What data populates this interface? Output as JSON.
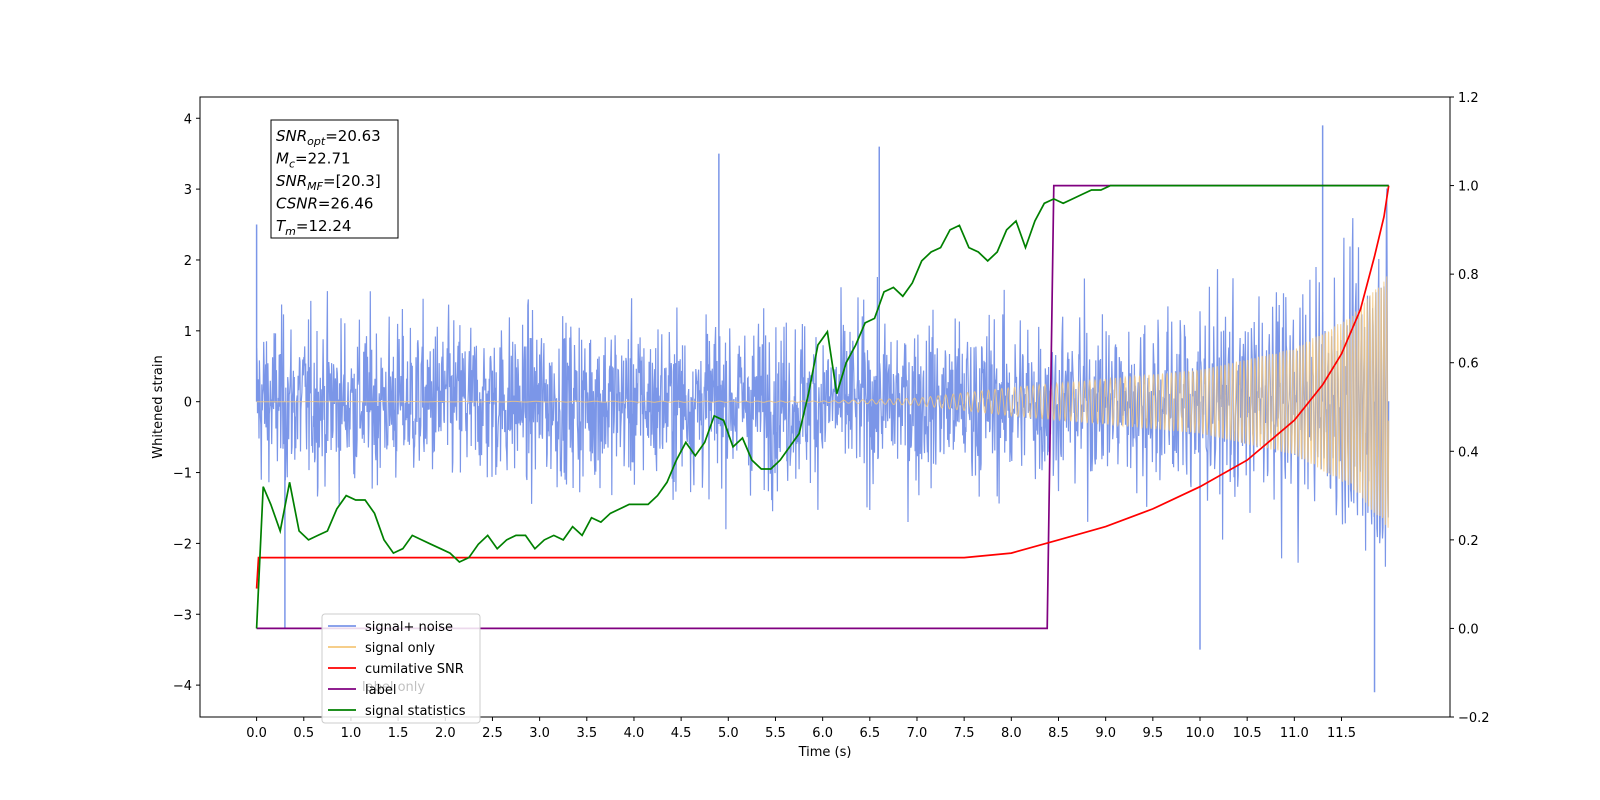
{
  "chart_data": {
    "type": "line",
    "xlabel": "Time (s)",
    "ylabel": "Whitened strain",
    "xlim": [
      -0.6,
      12.65
    ],
    "ylim": [
      -4.45,
      4.3
    ],
    "y2lim": [
      -0.2,
      1.2
    ],
    "x_ticks": [
      "0.0",
      "0.5",
      "1.0",
      "1.5",
      "2.0",
      "2.5",
      "3.0",
      "3.5",
      "4.0",
      "4.5",
      "5.0",
      "5.5",
      "6.0",
      "6.5",
      "7.0",
      "7.5",
      "8.0",
      "8.5",
      "9.0",
      "9.5",
      "10.0",
      "10.5",
      "11.0",
      "11.5"
    ],
    "y_ticks": [
      "4",
      "3",
      "2",
      "1",
      "0",
      "−1",
      "−2",
      "−3",
      "−4"
    ],
    "y2_ticks": [
      "1.2",
      "1.0",
      "0.8",
      "0.6",
      "0.4",
      "0.2",
      "0.0",
      "−0.2"
    ],
    "annotation": {
      "lines": [
        {
          "main": "SNR",
          "sub": "opt",
          "value": "=20.63"
        },
        {
          "main": "M",
          "sub": "c",
          "value": "=22.71"
        },
        {
          "main": "SNR",
          "sub": "MF",
          "value": "=[20.3]"
        },
        {
          "main": "CSNR",
          "sub": "",
          "value": "=26.46"
        },
        {
          "main": "T",
          "sub": "m",
          "value": "=12.24"
        }
      ]
    },
    "legend": {
      "position": "lower-left",
      "entries": [
        {
          "label": "signal+ noise",
          "color": "#7b96e8"
        },
        {
          "label": "signal only",
          "color": "#f5c77a"
        },
        {
          "label": "cumilative SNR",
          "color": "#ff0000"
        },
        {
          "label": "label",
          "color": "#800080"
        },
        {
          "label": "signal statistics",
          "color": "#008000"
        }
      ],
      "hidden_text": "label only"
    },
    "series": [
      {
        "name": "signal+ noise",
        "axis": "left",
        "color": "#7b96e8",
        "t_start": 0.0,
        "t_end": 12.0,
        "noise_amplitude": 2.4,
        "extremes": [
          [
            0.0,
            2.5
          ],
          [
            4.9,
            3.5
          ],
          [
            6.6,
            3.6
          ],
          [
            11.3,
            3.9
          ],
          [
            11.85,
            -4.1
          ],
          [
            10.0,
            -3.5
          ],
          [
            0.3,
            -3.2
          ]
        ]
      },
      {
        "name": "signal only",
        "axis": "left",
        "color": "#f5c77a",
        "t_start": 0.0,
        "t_end": 12.0,
        "envelope": [
          [
            0.0,
            0.0
          ],
          [
            6.0,
            0.01
          ],
          [
            7.0,
            0.05
          ],
          [
            8.0,
            0.2
          ],
          [
            9.0,
            0.32
          ],
          [
            10.0,
            0.45
          ],
          [
            11.0,
            0.75
          ],
          [
            11.6,
            1.2
          ],
          [
            12.0,
            1.8
          ]
        ]
      },
      {
        "name": "cumilative SNR",
        "axis": "right",
        "color": "#ff0000",
        "x": [
          0.0,
          0.02,
          7.5,
          8.0,
          8.5,
          9.0,
          9.5,
          10.0,
          10.5,
          11.0,
          11.3,
          11.5,
          11.7,
          11.85,
          11.95,
          12.0
        ],
        "y": [
          0.09,
          0.16,
          0.16,
          0.17,
          0.2,
          0.23,
          0.27,
          0.32,
          0.38,
          0.47,
          0.55,
          0.62,
          0.72,
          0.84,
          0.93,
          1.0
        ]
      },
      {
        "name": "label",
        "axis": "right",
        "color": "#800080",
        "x": [
          0.0,
          8.38,
          8.45,
          12.0
        ],
        "y": [
          0.0,
          0.0,
          1.0,
          1.0
        ]
      },
      {
        "name": "signal statistics",
        "axis": "right",
        "color": "#008000",
        "x": [
          0.0,
          0.07,
          0.15,
          0.25,
          0.35,
          0.45,
          0.55,
          0.65,
          0.75,
          0.85,
          0.95,
          1.05,
          1.15,
          1.25,
          1.35,
          1.45,
          1.55,
          1.65,
          1.75,
          1.85,
          1.95,
          2.05,
          2.15,
          2.25,
          2.35,
          2.45,
          2.55,
          2.65,
          2.75,
          2.85,
          2.95,
          3.05,
          3.15,
          3.25,
          3.35,
          3.45,
          3.55,
          3.65,
          3.75,
          3.85,
          3.95,
          4.05,
          4.15,
          4.25,
          4.35,
          4.45,
          4.55,
          4.65,
          4.75,
          4.85,
          4.95,
          5.05,
          5.15,
          5.25,
          5.35,
          5.45,
          5.55,
          5.65,
          5.75,
          5.85,
          5.95,
          6.05,
          6.15,
          6.25,
          6.35,
          6.45,
          6.55,
          6.65,
          6.75,
          6.85,
          6.95,
          7.05,
          7.15,
          7.25,
          7.35,
          7.45,
          7.55,
          7.65,
          7.75,
          7.85,
          7.95,
          8.05,
          8.15,
          8.25,
          8.35,
          8.45,
          8.55,
          8.65,
          8.75,
          8.85,
          8.95,
          9.05,
          9.2,
          9.5,
          10.0,
          10.5,
          11.0,
          11.5,
          12.0
        ],
        "y": [
          0.0,
          0.32,
          0.28,
          0.22,
          0.33,
          0.22,
          0.2,
          0.21,
          0.22,
          0.27,
          0.3,
          0.29,
          0.29,
          0.26,
          0.2,
          0.17,
          0.18,
          0.21,
          0.2,
          0.19,
          0.18,
          0.17,
          0.15,
          0.16,
          0.19,
          0.21,
          0.18,
          0.2,
          0.21,
          0.21,
          0.18,
          0.2,
          0.21,
          0.2,
          0.23,
          0.21,
          0.25,
          0.24,
          0.26,
          0.27,
          0.28,
          0.28,
          0.28,
          0.3,
          0.33,
          0.38,
          0.42,
          0.39,
          0.42,
          0.48,
          0.47,
          0.41,
          0.43,
          0.38,
          0.36,
          0.36,
          0.38,
          0.41,
          0.44,
          0.53,
          0.64,
          0.67,
          0.53,
          0.6,
          0.64,
          0.69,
          0.7,
          0.76,
          0.77,
          0.75,
          0.78,
          0.83,
          0.85,
          0.86,
          0.9,
          0.91,
          0.86,
          0.85,
          0.83,
          0.85,
          0.9,
          0.92,
          0.86,
          0.92,
          0.96,
          0.97,
          0.96,
          0.97,
          0.98,
          0.99,
          0.99,
          1.0,
          1.0,
          1.0,
          1.0,
          1.0,
          1.0,
          1.0,
          1.0
        ]
      }
    ]
  }
}
